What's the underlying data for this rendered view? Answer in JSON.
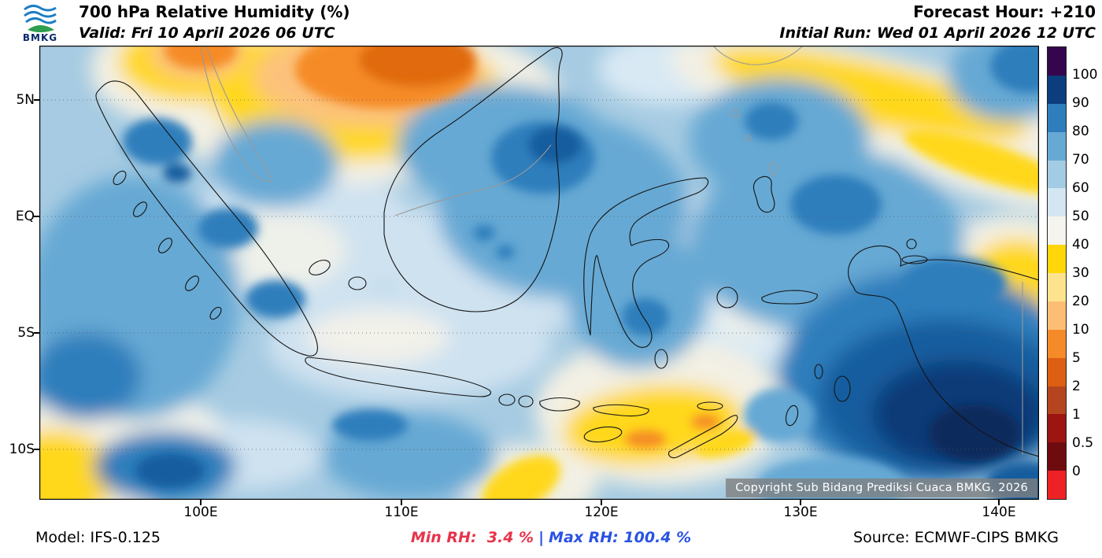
{
  "header": {
    "logo_text": "BMKG",
    "title": "700 hPa Relative Humidity (%)",
    "valid": "Valid: Fri 10 April 2026 06 UTC",
    "forecast_hour": "Forecast Hour: +210",
    "initial_run": "Initial Run: Wed 01 April 2026 12 UTC"
  },
  "map": {
    "lat_labels": [
      "5N",
      "EQ",
      "5S",
      "10S"
    ],
    "lon_labels": [
      "100E",
      "110E",
      "120E",
      "130E",
      "140E"
    ],
    "copyright": "Copyright Sub Bidang Prediksi Cuaca BMKG, 2026"
  },
  "colorbar": {
    "ticks": [
      "100",
      "90",
      "80",
      "70",
      "60",
      "50",
      "40",
      "30",
      "20",
      "10",
      "5",
      "2",
      "1",
      "0.5",
      "0"
    ],
    "segment_colors_top_to_bottom": [
      "#35064e",
      "#0c3d7c",
      "#2e7ebc",
      "#66a9d4",
      "#a3cbe3",
      "#d3e6f2",
      "#f6f4ee",
      "#ffd60a",
      "#fee38f",
      "#fcbe75",
      "#f58b28",
      "#dd5f13",
      "#b5451f",
      "#9c1511",
      "#6e0b0e",
      "#ee2224"
    ]
  },
  "footer": {
    "model": "Model: IFS-0.125",
    "min_rh": "Min RH:  3.4 %",
    "separator": "|",
    "max_rh": "Max RH: 100.4 %",
    "source": "Source: ECMWF-CIPS BMKG"
  },
  "colors": {
    "min_rh_text": "#e8334a",
    "max_rh_text": "#2952e3"
  },
  "chart_data": {
    "type": "heatmap",
    "title": "700 hPa Relative Humidity (%)",
    "variable": "relative humidity",
    "pressure_level_hpa": 700,
    "units": "%",
    "valid_time": "Fri 10 April 2026 06 UTC",
    "initial_run": "Wed 01 April 2026 12 UTC",
    "forecast_hour_offset": "+210",
    "model": "IFS-0.125",
    "source": "ECMWF-CIPS BMKG",
    "min_rh_percent": 3.4,
    "max_rh_percent": 100.4,
    "contour_levels_percent": [
      0,
      0.5,
      1,
      2,
      5,
      10,
      20,
      30,
      40,
      50,
      60,
      70,
      80,
      90,
      100
    ],
    "palette_low_to_high": [
      "#ee2224",
      "#6e0b0e",
      "#9c1511",
      "#b5451f",
      "#dd5f13",
      "#f58b28",
      "#fcbe75",
      "#fee38f",
      "#ffd60a",
      "#f6f4ee",
      "#d3e6f2",
      "#a3cbe3",
      "#66a9d4",
      "#2e7ebc",
      "#0c3d7c",
      "#35064e"
    ],
    "x_axis_ticks": [
      "100E",
      "110E",
      "120E",
      "130E",
      "140E"
    ],
    "y_axis_ticks": [
      "5N",
      "EQ",
      "5S",
      "10S"
    ],
    "approx_extent": {
      "lon_east_deg": [
        92,
        142
      ],
      "lat_deg": [
        -12,
        7
      ]
    },
    "legend_position": "right",
    "grid": "dotted latitude lines"
  }
}
